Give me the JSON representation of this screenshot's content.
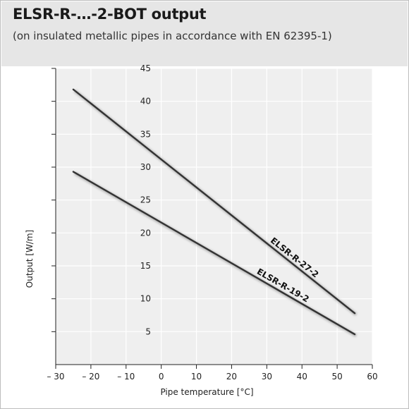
{
  "header": {
    "title": "ELSR-R-…-2-BOT output",
    "subtitle": "(on insulated metallic pipes in accordance with EN 62395-1)"
  },
  "colors": {
    "header_bg": "#e6e6e6",
    "plot_bg": "#efefef",
    "grid": "#ffffff",
    "axis": "#222222",
    "series_line": "#333333"
  },
  "chart_data": {
    "type": "line",
    "title": "ELSR-R-…-2-BOT output",
    "subtitle": "(on insulated metallic pipes in accordance with EN 62395-1)",
    "xlabel": "Pipe temperature [°C]",
    "ylabel": "Output [W/m]",
    "xlim": [
      -30,
      60
    ],
    "ylim": [
      0,
      45
    ],
    "x_ticks": [
      -30,
      -20,
      -10,
      0,
      10,
      20,
      30,
      40,
      50,
      60
    ],
    "x_tick_labels": [
      "– 30",
      "– 20",
      "– 10",
      "0",
      "10",
      "20",
      "30",
      "40",
      "50",
      "60"
    ],
    "y_ticks": [
      5,
      10,
      15,
      20,
      25,
      30,
      35,
      40,
      45
    ],
    "y_tick_labels": [
      "5",
      "10",
      "15",
      "20",
      "25",
      "30",
      "35",
      "40",
      "45"
    ],
    "grid": true,
    "series": [
      {
        "name": "ELSR-R-27-2",
        "x": [
          -25,
          55
        ],
        "y": [
          41.8,
          7.8
        ]
      },
      {
        "name": "ELSR-R-19-2",
        "x": [
          -25,
          55
        ],
        "y": [
          29.3,
          4.6
        ]
      }
    ]
  }
}
